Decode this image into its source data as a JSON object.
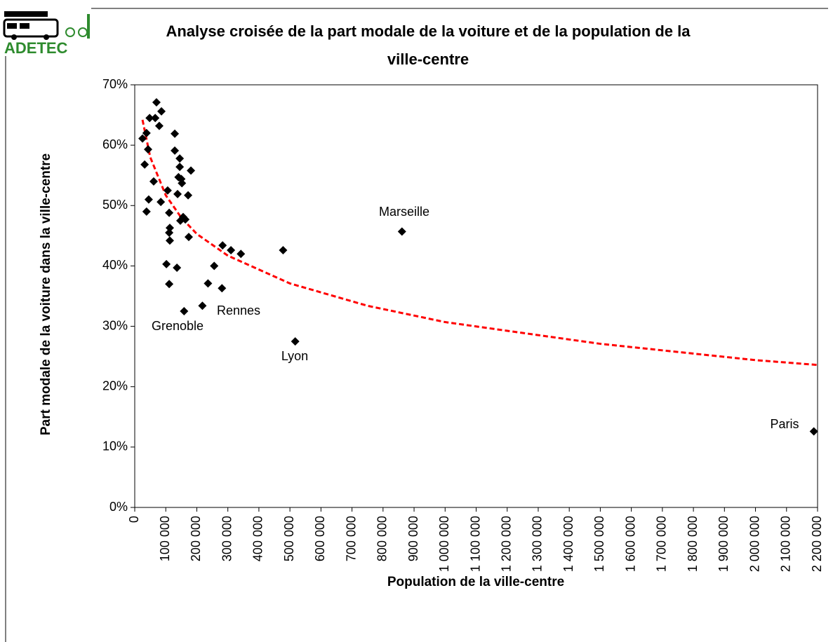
{
  "logo": "ADETEC",
  "chart_data": {
    "type": "scatter",
    "title": [
      "Analyse croisée de la part modale de la voiture et de la population de la",
      "ville-centre"
    ],
    "x_label": "Population de la ville-centre",
    "y_label": "Part modale de la voiture dans la ville-centre",
    "x": [
      25000,
      32000,
      38000,
      43000,
      48000,
      38000,
      45000,
      61000,
      66000,
      70000,
      79000,
      86000,
      84000,
      102000,
      106000,
      111000,
      111000,
      113000,
      113000,
      111000,
      129000,
      129000,
      136000,
      138000,
      141000,
      145000,
      145000,
      150000,
      152000,
      147000,
      156000,
      163000,
      172000,
      174000,
      181000,
      159000,
      218000,
      236000,
      256000,
      283000,
      281000,
      310000,
      342000,
      478000,
      517000,
      861000,
      2188000
    ],
    "series": [
      {
        "color": "#000000",
        "values": [
          61.1,
          56.8,
          62.0,
          59.3,
          64.5,
          49.0,
          51.0,
          54.0,
          64.5,
          67.1,
          63.2,
          65.6,
          50.6,
          40.3,
          52.5,
          45.5,
          48.8,
          46.3,
          44.2,
          37.0,
          61.9,
          59.1,
          39.7,
          51.9,
          54.7,
          57.8,
          56.4,
          54.4,
          53.7,
          47.5,
          48.1,
          47.7,
          51.7,
          44.8,
          55.8,
          32.5,
          33.4,
          37.1,
          40.0,
          43.4,
          36.3,
          42.6,
          42.0,
          42.6,
          27.5,
          45.7,
          12.6
        ]
      }
    ],
    "trendline": {
      "color": "#ff0000",
      "x": [
        25000,
        50000,
        100000,
        150000,
        200000,
        300000,
        500000,
        750000,
        1000000,
        1500000,
        2000000,
        2200000
      ],
      "values": [
        64.2,
        58.0,
        51.7,
        48.0,
        45.3,
        41.7,
        37.1,
        33.4,
        30.7,
        27.1,
        24.4,
        23.6
      ]
    },
    "annotations": [
      "Grenoble",
      "Rennes",
      "Lyon",
      "Marseille",
      "Paris"
    ],
    "xlim": [
      0,
      2200000
    ],
    "xticks": [
      0,
      {
        "value": 100000,
        "label": "100 000"
      },
      {
        "value": 200000,
        "label": "200 000"
      },
      {
        "value": 300000,
        "label": "300 000"
      },
      {
        "value": 400000,
        "label": "400 000"
      },
      {
        "value": 500000,
        "label": "500 000"
      },
      {
        "value": 600000,
        "label": "600 000"
      },
      {
        "value": 700000,
        "label": "700 000"
      },
      {
        "value": 800000,
        "label": "800 000"
      },
      {
        "value": 900000,
        "label": "900 000"
      },
      {
        "value": 1000000,
        "label": "1 000 000"
      },
      {
        "value": 1100000,
        "label": "1 100 000"
      },
      {
        "value": 1200000,
        "label": "1 200 000"
      },
      {
        "value": 1300000,
        "label": "1 300 000"
      },
      {
        "value": 1400000,
        "label": "1 400 000"
      },
      {
        "value": 1500000,
        "label": "1 500 000"
      },
      {
        "value": 1600000,
        "label": "1 600 000"
      },
      {
        "value": 1700000,
        "label": "1 700 000"
      },
      {
        "value": 1800000,
        "label": "1 800 000"
      },
      {
        "value": 1900000,
        "label": "1 900 000"
      },
      {
        "value": 2000000,
        "label": "2 000 000"
      },
      {
        "value": 2100000,
        "label": "2 100 000"
      },
      {
        "value": 2200000,
        "label": "2 200 000"
      }
    ],
    "ylim": [
      0,
      70
    ],
    "yticks": [
      {
        "value": 0,
        "label": "0%"
      },
      {
        "value": 10,
        "label": "10%"
      },
      {
        "value": 20,
        "label": "20%"
      },
      {
        "value": 30,
        "label": "30%"
      },
      {
        "value": 40,
        "label": "40%"
      },
      {
        "value": 50,
        "label": "50%"
      },
      {
        "value": 60,
        "label": "60%"
      },
      {
        "value": 70,
        "label": "70%"
      }
    ]
  }
}
